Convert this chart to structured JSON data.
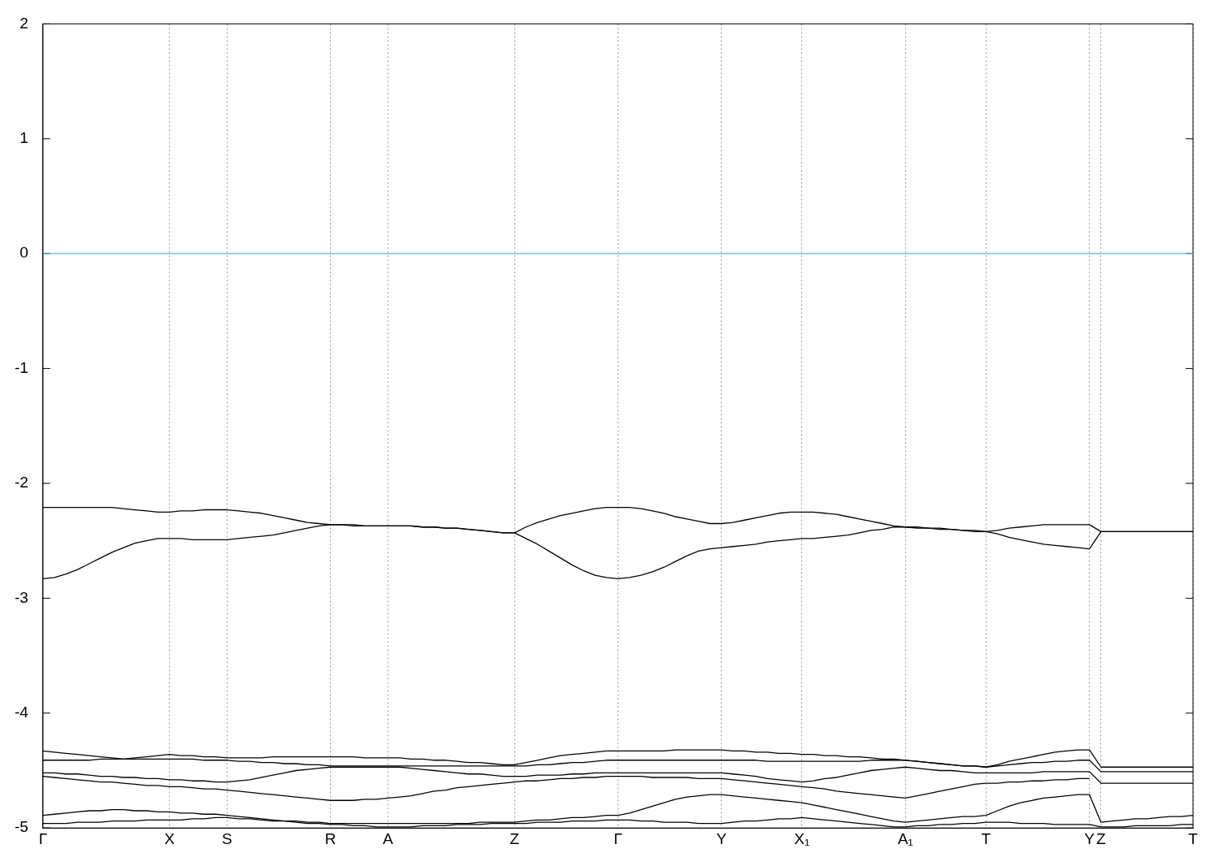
{
  "chart_data": {
    "type": "line",
    "ylim": [
      -5,
      2
    ],
    "yticks": [
      -5,
      -4,
      -3,
      -2,
      -1,
      0,
      1,
      2
    ],
    "grid": "x",
    "marker": "none",
    "line_style": "solid",
    "categories": [
      "Γ",
      null,
      null,
      null,
      null,
      null,
      null,
      null,
      null,
      null,
      null,
      "X",
      null,
      null,
      null,
      null,
      "S",
      null,
      null,
      null,
      null,
      null,
      null,
      null,
      null,
      "R",
      null,
      null,
      null,
      null,
      "A",
      null,
      null,
      null,
      null,
      null,
      null,
      null,
      null,
      null,
      null,
      "Z",
      null,
      null,
      null,
      null,
      null,
      null,
      null,
      null,
      "Γ",
      null,
      null,
      null,
      null,
      null,
      null,
      null,
      null,
      "Y",
      null,
      null,
      null,
      null,
      null,
      null,
      "X₁",
      null,
      null,
      null,
      null,
      null,
      null,
      null,
      null,
      "A₁",
      null,
      null,
      null,
      null,
      null,
      null,
      "T",
      null,
      null,
      null,
      null,
      null,
      null,
      null,
      null,
      "Y",
      "Z",
      null,
      null,
      null,
      null,
      null,
      null,
      null,
      "T"
    ],
    "ref_lines": [
      {
        "axis": "y",
        "value": 0,
        "color": "#56b4e9"
      }
    ],
    "series": [
      {
        "color": "#000000",
        "values": [
          -2.21,
          -2.21,
          -2.21,
          -2.21,
          -2.21,
          -2.21,
          -2.21,
          -2.22,
          -2.23,
          -2.24,
          -2.25,
          -2.25,
          -2.24,
          -2.24,
          -2.23,
          -2.23,
          -2.23,
          -2.24,
          -2.25,
          -2.26,
          -2.28,
          -2.3,
          -2.32,
          -2.34,
          -2.35,
          -2.36,
          -2.36,
          -2.36,
          -2.37,
          -2.37,
          -2.37,
          -2.37,
          -2.37,
          -2.38,
          -2.38,
          -2.39,
          -2.39,
          -2.4,
          -2.41,
          -2.42,
          -2.43,
          -2.43,
          -2.38,
          -2.34,
          -2.31,
          -2.28,
          -2.26,
          -2.24,
          -2.22,
          -2.21,
          -2.21,
          -2.21,
          -2.22,
          -2.24,
          -2.26,
          -2.29,
          -2.31,
          -2.33,
          -2.35,
          -2.35,
          -2.34,
          -2.32,
          -2.3,
          -2.28,
          -2.26,
          -2.25,
          -2.25,
          -2.25,
          -2.26,
          -2.27,
          -2.29,
          -2.31,
          -2.33,
          -2.35,
          -2.37,
          -2.38,
          -2.38,
          -2.39,
          -2.39,
          -2.4,
          -2.41,
          -2.41,
          -2.42,
          -2.41,
          -2.39,
          -2.38,
          -2.37,
          -2.36,
          -2.36,
          -2.36,
          -2.36,
          -2.36,
          -2.42,
          -2.42,
          -2.42,
          -2.42,
          -2.42,
          -2.42,
          -2.42,
          -2.42,
          -2.42
        ]
      },
      {
        "color": "#000000",
        "values": [
          -2.83,
          -2.82,
          -2.79,
          -2.75,
          -2.7,
          -2.65,
          -2.6,
          -2.56,
          -2.52,
          -2.5,
          -2.48,
          -2.48,
          -2.48,
          -2.49,
          -2.49,
          -2.49,
          -2.49,
          -2.48,
          -2.47,
          -2.46,
          -2.45,
          -2.43,
          -2.41,
          -2.39,
          -2.37,
          -2.36,
          -2.36,
          -2.37,
          -2.37,
          -2.37,
          -2.37,
          -2.37,
          -2.37,
          -2.38,
          -2.38,
          -2.39,
          -2.39,
          -2.4,
          -2.41,
          -2.42,
          -2.43,
          -2.43,
          -2.48,
          -2.53,
          -2.59,
          -2.65,
          -2.71,
          -2.76,
          -2.8,
          -2.82,
          -2.83,
          -2.82,
          -2.8,
          -2.77,
          -2.73,
          -2.68,
          -2.63,
          -2.59,
          -2.57,
          -2.56,
          -2.55,
          -2.54,
          -2.53,
          -2.51,
          -2.5,
          -2.49,
          -2.48,
          -2.48,
          -2.47,
          -2.46,
          -2.45,
          -2.43,
          -2.41,
          -2.4,
          -2.38,
          -2.38,
          -2.39,
          -2.39,
          -2.4,
          -2.4,
          -2.41,
          -2.42,
          -2.42,
          -2.44,
          -2.47,
          -2.49,
          -2.51,
          -2.53,
          -2.54,
          -2.55,
          -2.56,
          -2.57,
          -2.42,
          -2.42,
          -2.42,
          -2.42,
          -2.42,
          -2.42,
          -2.42,
          -2.42,
          -2.42
        ]
      },
      {
        "color": "#000000",
        "values": [
          -4.33,
          -4.34,
          -4.35,
          -4.36,
          -4.37,
          -4.38,
          -4.39,
          -4.4,
          -4.39,
          -4.38,
          -4.37,
          -4.36,
          -4.37,
          -4.37,
          -4.38,
          -4.38,
          -4.39,
          -4.39,
          -4.39,
          -4.39,
          -4.38,
          -4.38,
          -4.38,
          -4.38,
          -4.38,
          -4.38,
          -4.38,
          -4.38,
          -4.39,
          -4.39,
          -4.39,
          -4.39,
          -4.4,
          -4.4,
          -4.41,
          -4.41,
          -4.42,
          -4.43,
          -4.43,
          -4.44,
          -4.45,
          -4.45,
          -4.43,
          -4.41,
          -4.39,
          -4.37,
          -4.36,
          -4.35,
          -4.34,
          -4.33,
          -4.33,
          -4.33,
          -4.33,
          -4.33,
          -4.33,
          -4.32,
          -4.32,
          -4.32,
          -4.32,
          -4.32,
          -4.33,
          -4.33,
          -4.34,
          -4.34,
          -4.35,
          -4.35,
          -4.36,
          -4.36,
          -4.37,
          -4.37,
          -4.38,
          -4.38,
          -4.39,
          -4.4,
          -4.4,
          -4.41,
          -4.42,
          -4.43,
          -4.44,
          -4.45,
          -4.46,
          -4.46,
          -4.47,
          -4.45,
          -4.42,
          -4.4,
          -4.38,
          -4.36,
          -4.34,
          -4.33,
          -4.32,
          -4.32,
          -4.47,
          -4.47,
          -4.47,
          -4.47,
          -4.47,
          -4.47,
          -4.47,
          -4.47,
          -4.47
        ]
      },
      {
        "color": "#000000",
        "values": [
          -4.41,
          -4.41,
          -4.41,
          -4.41,
          -4.41,
          -4.4,
          -4.4,
          -4.4,
          -4.4,
          -4.4,
          -4.4,
          -4.4,
          -4.4,
          -4.4,
          -4.41,
          -4.41,
          -4.41,
          -4.42,
          -4.42,
          -4.43,
          -4.43,
          -4.44,
          -4.44,
          -4.45,
          -4.45,
          -4.46,
          -4.46,
          -4.46,
          -4.46,
          -4.46,
          -4.46,
          -4.46,
          -4.46,
          -4.46,
          -4.46,
          -4.46,
          -4.46,
          -4.46,
          -4.46,
          -4.46,
          -4.46,
          -4.46,
          -4.46,
          -4.45,
          -4.45,
          -4.44,
          -4.43,
          -4.43,
          -4.42,
          -4.41,
          -4.41,
          -4.41,
          -4.41,
          -4.41,
          -4.41,
          -4.41,
          -4.41,
          -4.41,
          -4.41,
          -4.41,
          -4.41,
          -4.41,
          -4.41,
          -4.42,
          -4.42,
          -4.42,
          -4.42,
          -4.42,
          -4.42,
          -4.42,
          -4.42,
          -4.42,
          -4.41,
          -4.41,
          -4.41,
          -4.41,
          -4.42,
          -4.43,
          -4.44,
          -4.45,
          -4.46,
          -4.46,
          -4.47,
          -4.46,
          -4.45,
          -4.44,
          -4.43,
          -4.43,
          -4.42,
          -4.42,
          -4.41,
          -4.41,
          -4.51,
          -4.51,
          -4.51,
          -4.51,
          -4.51,
          -4.51,
          -4.51,
          -4.51,
          -4.51
        ]
      },
      {
        "color": "#000000",
        "values": [
          -4.52,
          -4.52,
          -4.53,
          -4.53,
          -4.54,
          -4.55,
          -4.55,
          -4.56,
          -4.56,
          -4.57,
          -4.57,
          -4.58,
          -4.58,
          -4.59,
          -4.59,
          -4.6,
          -4.6,
          -4.59,
          -4.58,
          -4.56,
          -4.54,
          -4.52,
          -4.5,
          -4.49,
          -4.48,
          -4.47,
          -4.47,
          -4.47,
          -4.47,
          -4.47,
          -4.47,
          -4.47,
          -4.48,
          -4.49,
          -4.5,
          -4.51,
          -4.52,
          -4.53,
          -4.53,
          -4.54,
          -4.55,
          -4.55,
          -4.55,
          -4.54,
          -4.54,
          -4.54,
          -4.53,
          -4.53,
          -4.52,
          -4.52,
          -4.52,
          -4.52,
          -4.52,
          -4.52,
          -4.52,
          -4.52,
          -4.52,
          -4.52,
          -4.52,
          -4.52,
          -4.53,
          -4.54,
          -4.55,
          -4.57,
          -4.58,
          -4.59,
          -4.6,
          -4.59,
          -4.57,
          -4.56,
          -4.54,
          -4.52,
          -4.5,
          -4.49,
          -4.48,
          -4.47,
          -4.48,
          -4.49,
          -4.5,
          -4.5,
          -4.51,
          -4.52,
          -4.52,
          -4.52,
          -4.52,
          -4.52,
          -4.52,
          -4.51,
          -4.51,
          -4.51,
          -4.51,
          -4.51,
          -4.61,
          -4.61,
          -4.61,
          -4.61,
          -4.61,
          -4.61,
          -4.61,
          -4.61,
          -4.61
        ]
      },
      {
        "color": "#000000",
        "values": [
          -4.55,
          -4.56,
          -4.57,
          -4.58,
          -4.59,
          -4.6,
          -4.6,
          -4.61,
          -4.62,
          -4.63,
          -4.63,
          -4.64,
          -4.64,
          -4.65,
          -4.66,
          -4.66,
          -4.67,
          -4.68,
          -4.69,
          -4.7,
          -4.71,
          -4.72,
          -4.73,
          -4.74,
          -4.75,
          -4.76,
          -4.76,
          -4.76,
          -4.75,
          -4.75,
          -4.74,
          -4.73,
          -4.72,
          -4.7,
          -4.68,
          -4.67,
          -4.65,
          -4.64,
          -4.63,
          -4.62,
          -4.61,
          -4.6,
          -4.59,
          -4.59,
          -4.58,
          -4.57,
          -4.57,
          -4.56,
          -4.56,
          -4.55,
          -4.55,
          -4.55,
          -4.55,
          -4.56,
          -4.56,
          -4.56,
          -4.56,
          -4.57,
          -4.57,
          -4.57,
          -4.58,
          -4.59,
          -4.6,
          -4.61,
          -4.62,
          -4.63,
          -4.64,
          -4.65,
          -4.66,
          -4.68,
          -4.69,
          -4.7,
          -4.71,
          -4.72,
          -4.73,
          -4.74,
          -4.72,
          -4.7,
          -4.68,
          -4.66,
          -4.64,
          -4.62,
          -4.61,
          -4.61,
          -4.6,
          -4.6,
          -4.59,
          -4.59,
          -4.58,
          -4.58,
          -4.57,
          -4.57,
          null,
          null,
          null,
          null,
          null,
          null,
          null,
          null,
          null
        ]
      },
      {
        "color": "#000000",
        "values": [
          -4.89,
          -4.88,
          -4.87,
          -4.86,
          -4.85,
          -4.85,
          -4.84,
          -4.84,
          -4.85,
          -4.85,
          -4.86,
          -4.86,
          -4.87,
          -4.87,
          -4.88,
          -4.88,
          -4.89,
          -4.9,
          -4.91,
          -4.92,
          -4.93,
          -4.94,
          -4.94,
          -4.95,
          -4.95,
          -4.96,
          -4.96,
          -4.96,
          -4.96,
          -4.96,
          -4.96,
          -4.96,
          -4.96,
          -4.96,
          -4.96,
          -4.96,
          -4.96,
          -4.96,
          -4.95,
          -4.95,
          -4.95,
          -4.95,
          -4.94,
          -4.93,
          -4.93,
          -4.92,
          -4.91,
          -4.91,
          -4.9,
          -4.89,
          -4.89,
          -4.87,
          -4.84,
          -4.81,
          -4.78,
          -4.75,
          -4.73,
          -4.72,
          -4.71,
          -4.71,
          -4.72,
          -4.73,
          -4.74,
          -4.75,
          -4.76,
          -4.77,
          -4.78,
          -4.8,
          -4.82,
          -4.84,
          -4.86,
          -4.88,
          -4.9,
          -4.92,
          -4.94,
          -4.95,
          -4.94,
          -4.93,
          -4.92,
          -4.91,
          -4.9,
          -4.9,
          -4.89,
          -4.85,
          -4.81,
          -4.78,
          -4.76,
          -4.74,
          -4.73,
          -4.72,
          -4.71,
          -4.71,
          -4.95,
          -4.94,
          -4.93,
          -4.92,
          -4.92,
          -4.91,
          -4.9,
          -4.9,
          -4.89
        ]
      },
      {
        "color": "#000000",
        "values": [
          -4.96,
          -4.96,
          -4.96,
          -4.95,
          -4.95,
          -4.95,
          -4.94,
          -4.94,
          -4.94,
          -4.93,
          -4.93,
          -4.93,
          -4.93,
          -4.92,
          -4.92,
          -4.91,
          -4.91,
          -4.92,
          -4.92,
          -4.93,
          -4.94,
          -4.94,
          -4.95,
          -4.96,
          -4.96,
          -4.97,
          -4.97,
          -4.98,
          -4.98,
          -4.99,
          -4.99,
          -4.99,
          -4.99,
          -4.98,
          -4.98,
          -4.98,
          -4.97,
          -4.97,
          -4.97,
          -4.96,
          -4.96,
          -4.96,
          -4.96,
          -4.95,
          -4.95,
          -4.95,
          -4.94,
          -4.94,
          -4.94,
          -4.93,
          -4.93,
          -4.93,
          -4.94,
          -4.94,
          -4.95,
          -4.95,
          -4.95,
          -4.96,
          -4.96,
          -4.96,
          -4.95,
          -4.94,
          -4.94,
          -4.93,
          -4.92,
          -4.92,
          -4.91,
          -4.92,
          -4.93,
          -4.94,
          -4.95,
          -4.96,
          -4.97,
          -4.98,
          -4.99,
          -4.99,
          -4.98,
          -4.98,
          -4.97,
          -4.97,
          -4.96,
          -4.96,
          -4.95,
          -4.95,
          -4.95,
          -4.96,
          -4.96,
          -4.96,
          -4.97,
          -4.97,
          -4.97,
          -4.97,
          -4.99,
          -4.99,
          -4.99,
          -4.98,
          -4.98,
          -4.98,
          -4.98,
          -4.97,
          -4.97
        ]
      }
    ]
  }
}
